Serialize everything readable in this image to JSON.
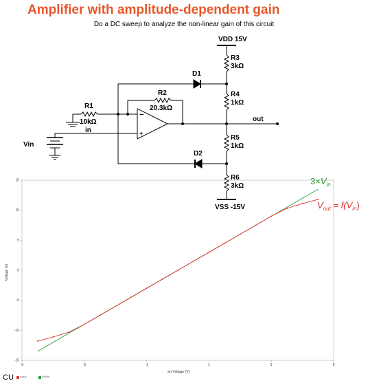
{
  "title": "Amplifier with amplitude-dependent gain",
  "subtitle": "Do a DC sweep to analyze the non-linear gain of this circuit",
  "circuit": {
    "vdd": "VDD 15V",
    "vss": "VSS -15V",
    "r3_name": "R3",
    "r3_value": "3kΩ",
    "r4_name": "R4",
    "r4_value": "1kΩ",
    "r5_name": "R5",
    "r5_value": "1kΩ",
    "r6_name": "R6",
    "r6_value": "3kΩ",
    "r2_name": "R2",
    "r2_value": "20.3kΩ",
    "r1_name": "R1",
    "r1_value": "10kΩ",
    "in_label": "in",
    "d1": "D1",
    "d2": "D2",
    "out_label": "out",
    "vin_label": "Vin",
    "opamp_minus": "−",
    "opamp_plus": "+"
  },
  "annotations": {
    "green": {
      "coef": "3×",
      "sym": "V",
      "sub": "in"
    },
    "red": {
      "sym": "V",
      "sub": "out",
      "eq": " = f(",
      "sym2": "V",
      "sub2": "in",
      "close": ")"
    }
  },
  "legend": {
    "logo": "CU",
    "item1": "V(out)",
    "item2": "3V(vin)"
  },
  "colors": {
    "orange_title": "#e8572a",
    "green": "#2a9d2a",
    "red": "#e03030"
  },
  "chart_data": {
    "type": "line",
    "xlabel": "vin Voltage (V)",
    "ylabel": "Voltage (V)",
    "xlim": [
      -5,
      5
    ],
    "ylim": [
      -15,
      15
    ],
    "xticks": [
      "-5",
      "-3",
      "-1",
      "1",
      "3",
      "5"
    ],
    "yticks": [
      "15",
      "10",
      "5",
      "0",
      "-5",
      "-10",
      "-15"
    ],
    "series": [
      {
        "color": "#2a9d2a",
        "x": [
          -4.5,
          4.5
        ],
        "y": [
          -13.5,
          13.5
        ]
      },
      {
        "color": "#e03030",
        "x": [
          -4.5,
          -4.0,
          -3.5,
          -3.0,
          -2.5,
          -2.0,
          -1.5,
          -1.0,
          -0.5,
          0.0,
          0.5,
          1.0,
          1.5,
          2.0,
          2.5,
          3.0,
          3.5,
          4.0,
          4.5
        ],
        "y": [
          -11.8,
          -11.1,
          -10.3,
          -9.0,
          -7.5,
          -6.0,
          -4.5,
          -3.0,
          -1.5,
          0.0,
          1.5,
          3.0,
          4.5,
          6.0,
          7.5,
          9.0,
          10.3,
          11.1,
          11.8
        ]
      }
    ]
  }
}
